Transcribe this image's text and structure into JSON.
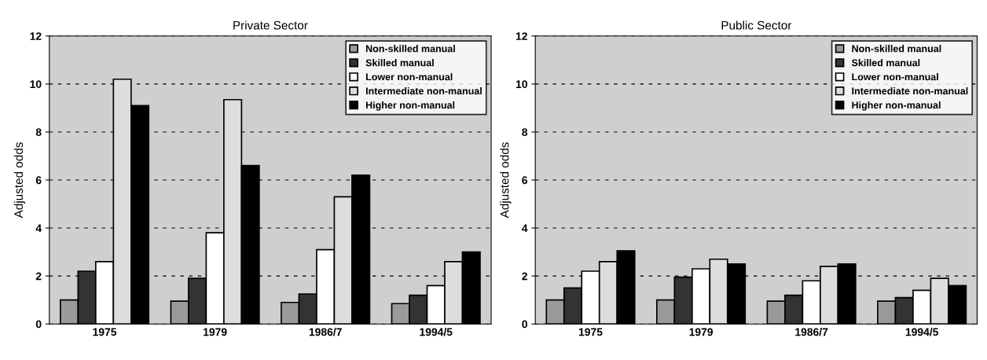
{
  "chart_data": [
    {
      "type": "bar",
      "title": "Private Sector",
      "ylabel": "Adjusted odds",
      "categories": [
        "1975",
        "1979",
        "1986/7",
        "1994/5"
      ],
      "ylim": [
        0,
        12
      ],
      "yticks": [
        0,
        2,
        4,
        6,
        8,
        10,
        12
      ],
      "grid": "y",
      "legend": "top right",
      "series": [
        {
          "name": "Non-skilled manual",
          "color": "#9a9a9a",
          "values": [
            1.0,
            0.95,
            0.9,
            0.85
          ]
        },
        {
          "name": "Skilled manual",
          "color": "#333333",
          "values": [
            2.2,
            1.9,
            1.25,
            1.2
          ]
        },
        {
          "name": "Lower non-manual",
          "color": "#ffffff",
          "values": [
            2.6,
            3.8,
            3.1,
            1.6
          ]
        },
        {
          "name": "Intermediate non-manual",
          "color": "#dddddd",
          "values": [
            10.2,
            9.35,
            5.3,
            2.6
          ]
        },
        {
          "name": "Higher non-manual",
          "color": "#000000",
          "values": [
            9.1,
            6.6,
            6.2,
            3.0
          ]
        }
      ]
    },
    {
      "type": "bar",
      "title": "Public Sector",
      "ylabel": "Adjusted odds",
      "categories": [
        "1975",
        "1979",
        "1986/7",
        "1994/5"
      ],
      "ylim": [
        0,
        12
      ],
      "yticks": [
        0,
        2,
        4,
        6,
        8,
        10,
        12
      ],
      "grid": "y",
      "legend": "top right",
      "series": [
        {
          "name": "Non-skilled manual",
          "color": "#9a9a9a",
          "values": [
            1.0,
            1.0,
            0.95,
            0.95
          ]
        },
        {
          "name": "Skilled manual",
          "color": "#333333",
          "values": [
            1.5,
            1.95,
            1.2,
            1.1
          ]
        },
        {
          "name": "Lower non-manual",
          "color": "#ffffff",
          "values": [
            2.2,
            2.3,
            1.8,
            1.4
          ]
        },
        {
          "name": "Intermediate non-manual",
          "color": "#dddddd",
          "values": [
            2.6,
            2.7,
            2.4,
            1.9
          ]
        },
        {
          "name": "Higher non-manual",
          "color": "#000000",
          "values": [
            3.05,
            2.5,
            2.5,
            1.6
          ]
        }
      ]
    }
  ]
}
